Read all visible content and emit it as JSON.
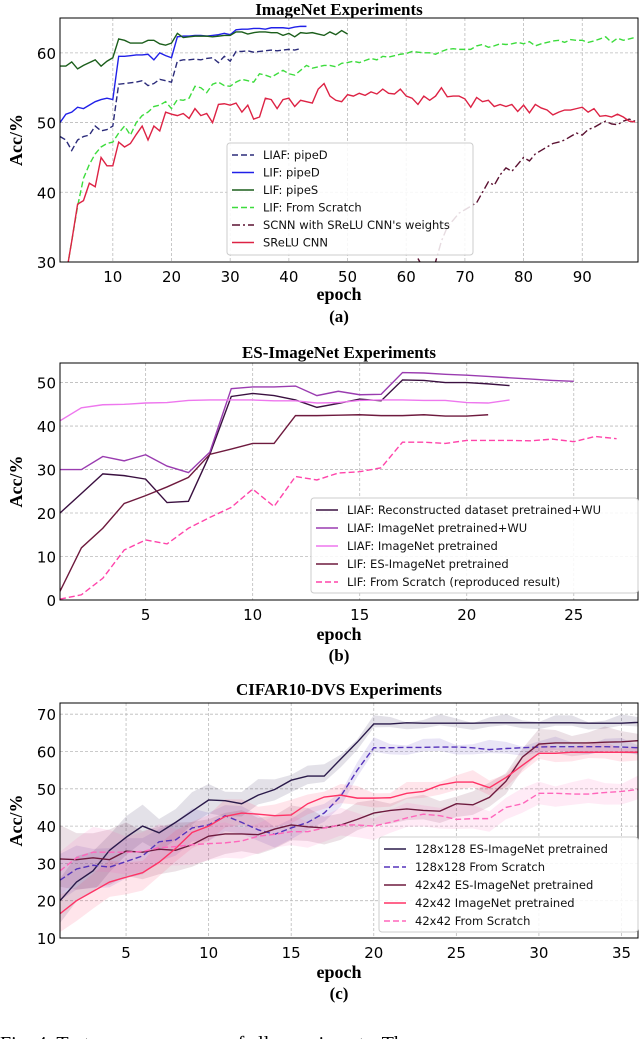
{
  "caption": "Fig. 4.  Test accuracy curves of all experiments. The",
  "chart_data": [
    {
      "type": "line",
      "title": "ImageNet Experiments",
      "xlabel": "epoch",
      "ylabel": "Acc/%",
      "sublabel": "(a)",
      "xlim": [
        1,
        99.5
      ],
      "ylim": [
        30,
        65
      ],
      "xticks": [
        10,
        20,
        30,
        40,
        50,
        60,
        70,
        80,
        90
      ],
      "yticks": [
        30,
        40,
        50,
        60
      ],
      "grid": true,
      "legend": "center",
      "series": [
        {
          "name": "LIAF: pipeD",
          "color": "#2b2b7a",
          "dash": "dashed",
          "x0": 1,
          "values": [
            48,
            47.5,
            46,
            47.5,
            48,
            48.2,
            49.5,
            48.8,
            49,
            49.5,
            55.5,
            55.6,
            55.7,
            55.8,
            56,
            55.3,
            55.6,
            56.2,
            56,
            55.8,
            58.8,
            59,
            59,
            59.1,
            59,
            59.2,
            59.3,
            58.6,
            59.5,
            58.8,
            60.2,
            60.2,
            60.3,
            60.1,
            60.2,
            60.3,
            60.4,
            60.3,
            60.4,
            60.5,
            60.4,
            60.6
          ]
        },
        {
          "name": "LIF: pipeD",
          "color": "#2020e8",
          "dash": "solid",
          "x0": 1,
          "values": [
            50,
            51.2,
            51.5,
            52.2,
            52,
            52.5,
            53,
            53.3,
            53.5,
            53.3,
            59.5,
            59.5,
            59.6,
            59.7,
            59.7,
            59.8,
            59,
            60,
            59.6,
            59.3,
            62.3,
            62.4,
            62.4,
            62.5,
            62.5,
            62.4,
            62.5,
            62.6,
            62.8,
            62.6,
            63.3,
            63.4,
            63.4,
            63.5,
            63.5,
            63.4,
            63.6,
            63.6,
            63.6,
            63.5,
            63.7,
            63.8,
            63.8
          ]
        },
        {
          "name": "LIF: pipeS",
          "color": "#1b5e1b",
          "dash": "solid",
          "x0": 1,
          "values": [
            58.1,
            58.1,
            58.7,
            57.7,
            58.2,
            58.6,
            59,
            58.1,
            58.8,
            59.3,
            62,
            61.8,
            61.4,
            61.4,
            61.4,
            61.8,
            61.8,
            61.3,
            61.1,
            61.4,
            62.8,
            62.2,
            62.3,
            62.4,
            62.4,
            62.4,
            62.3,
            62.4,
            62.5,
            62.5,
            63,
            63,
            62.7,
            62.9,
            63,
            63,
            62.9,
            62.9,
            62.5,
            62.8,
            62.3,
            62.9,
            62.8,
            62.9,
            62.7,
            62.5,
            63,
            62.6,
            63.2,
            62.7
          ]
        },
        {
          "name": "LIF: From Scratch",
          "color": "#3ddc3d",
          "dash": "dashed",
          "x0": 2,
          "values": [
            28,
            33,
            38,
            42,
            44,
            45.5,
            46.5,
            47,
            47.2,
            48.5,
            49.5,
            48.2,
            50,
            51,
            51.5,
            52.3,
            52.5,
            53,
            52,
            53.3,
            53.2,
            53.5,
            55.2,
            55,
            54.3,
            55.5,
            55.8,
            55.3,
            55.2,
            55.8,
            56.2,
            56,
            55.8,
            57,
            56.8,
            56.5,
            57,
            57.5,
            57,
            56.8,
            57.5,
            58.2,
            57.8,
            58,
            58.2,
            58.2,
            58,
            58.5,
            58.6,
            58.8,
            58.6,
            58.9,
            59.2,
            59,
            59.5,
            59.4,
            59.6,
            59.8,
            59.9,
            60.2,
            60.1,
            60,
            60,
            59.8,
            60.2,
            60.5,
            60.6,
            60.5,
            60.5,
            60.5,
            61,
            61.2,
            60.8,
            61,
            61.3,
            61.2,
            61.3,
            61.5,
            61.3,
            61.6,
            61,
            61.3,
            61.5,
            61.7,
            61.8,
            61.5,
            61.9,
            61.8,
            61.8,
            61.5,
            61.7,
            62,
            62.3,
            61.5,
            62.1,
            61.8,
            62,
            62.2
          ]
        },
        {
          "name": "SCNN with SReLU CNN's weights",
          "color": "#5a1030",
          "dash": "dashdot",
          "x0": 62,
          "values": [
            30.5,
            29,
            28,
            30,
            33,
            35,
            36,
            37,
            37.5,
            38,
            38.5,
            40,
            41.5,
            41,
            42.5,
            43.5,
            43,
            44,
            45,
            44.5,
            45.5,
            46,
            46.5,
            47,
            47.2,
            47.5,
            48,
            48.5,
            48.2,
            49,
            49.3,
            49.8,
            50.2,
            49.8,
            49.7,
            50.2,
            50.5,
            50.2
          ]
        },
        {
          "name": "SReLU CNN",
          "color": "#dd2244",
          "dash": "solid",
          "x0": 2,
          "values": [
            28,
            33,
            38.3,
            38.8,
            41.3,
            40.8,
            45,
            43.8,
            43.8,
            47.2,
            46.5,
            47,
            48.3,
            49.5,
            47.5,
            49.5,
            48.8,
            51.5,
            51.2,
            51,
            51.3,
            50.6,
            52,
            51,
            51.3,
            50,
            52.6,
            52.7,
            52.5,
            52.8,
            51.5,
            52.5,
            50.5,
            50.8,
            53.5,
            53.3,
            52,
            53.3,
            53.5,
            52.3,
            53.2,
            53,
            52.8,
            54.8,
            55.6,
            53.8,
            53.2,
            53,
            54,
            53.8,
            54.2,
            53.9,
            54.4,
            54.1,
            54.8,
            54.2,
            54.1,
            54.8,
            53.8,
            53.5,
            52.6,
            53.8,
            53.2,
            53.8,
            55,
            53.7,
            53.8,
            53.8,
            53.4,
            52.2,
            53.6,
            53,
            53.2,
            52.3,
            52.6,
            52.3,
            52.6,
            51.6,
            52.5,
            51.4,
            52.6,
            52.1,
            51.8,
            51.1,
            51.5,
            51.8,
            51.8,
            52,
            52.2,
            51.5,
            52,
            50.9,
            51,
            50.8,
            51.2,
            50.8,
            50.2,
            50.1
          ]
        }
      ]
    },
    {
      "type": "line",
      "title": "ES-ImageNet Experiments",
      "xlabel": "epoch",
      "ylabel": "Acc/%",
      "sublabel": "(b)",
      "xlim": [
        1,
        28
      ],
      "ylim": [
        0,
        54.5
      ],
      "xticks": [
        5,
        10,
        15,
        20,
        25
      ],
      "yticks": [
        0,
        10,
        20,
        30,
        40,
        50
      ],
      "grid": true,
      "legend": "lower-right",
      "series": [
        {
          "name": "LIAF: Reconstructed dataset pretrained+WU",
          "color": "#3a1040",
          "dash": "solid",
          "x0": 1,
          "values": [
            20,
            24.5,
            29,
            28.6,
            27.8,
            22.4,
            22.7,
            33.5,
            46.8,
            47.5,
            47,
            46,
            44.3,
            45.2,
            46.2,
            45.8,
            50.6,
            50.5,
            50,
            50,
            49.7,
            49.3
          ]
        },
        {
          "name": "LIAF: ImageNet pretrained+WU",
          "color": "#9a3cb0",
          "dash": "solid",
          "x0": 1,
          "values": [
            30,
            30,
            33,
            32,
            33.4,
            30.8,
            29.3,
            34,
            48.6,
            49,
            49,
            49.2,
            47,
            48,
            47.2,
            47.3,
            52.3,
            52.2,
            51.9,
            51.7,
            51.4,
            51.1,
            50.8,
            50.5,
            50.3
          ]
        },
        {
          "name": "LIAF: ImageNet pretrained",
          "color": "#ee77ee",
          "dash": "solid",
          "x0": 1,
          "values": [
            41.2,
            44.2,
            44.9,
            45,
            45.3,
            45.4,
            45.9,
            46,
            46,
            46,
            45.8,
            45.8,
            45.3,
            45.4,
            45.9,
            46,
            46,
            45.9,
            45.9,
            45.4,
            45.3,
            46
          ]
        },
        {
          "name": "LIF: ES-ImageNet pretrained",
          "color": "#6e1a3e",
          "dash": "solid",
          "x0": 1,
          "values": [
            2,
            12,
            16.5,
            22.2,
            24,
            26,
            28.2,
            33.5,
            34.7,
            36,
            36,
            42.4,
            42.4,
            42.5,
            42.6,
            42.4,
            42.4,
            42.6,
            42.3,
            42.3,
            42.6
          ]
        },
        {
          "name": "LIF: From Scratch (reproduced result)",
          "color": "#ff44aa",
          "dash": "dashed",
          "x0": 1,
          "values": [
            0.2,
            1.2,
            5,
            11.5,
            13.8,
            12.9,
            16.5,
            19,
            21.3,
            25.5,
            21.5,
            28.4,
            27.6,
            29.2,
            29.5,
            30.4,
            36.3,
            36.3,
            36,
            36.7,
            36.7,
            36.7,
            36.6,
            37,
            36.4,
            37.6,
            37.1
          ]
        }
      ]
    },
    {
      "type": "line",
      "title": "CIFAR10-DVS Experiments",
      "xlabel": "epoch",
      "ylabel": "Acc/%",
      "sublabel": "(c)",
      "xlim": [
        1,
        36
      ],
      "ylim": [
        10,
        73
      ],
      "xticks": [
        5,
        10,
        15,
        20,
        25,
        30,
        35
      ],
      "yticks": [
        10,
        20,
        30,
        40,
        50,
        60,
        70
      ],
      "grid": true,
      "legend": "lower-right",
      "series": [
        {
          "name": "128x128 ES-ImageNet pretrained",
          "color": "#2a1a4a",
          "dash": "solid",
          "x0": 1,
          "band": [
            6,
            1.2
          ],
          "values": [
            20,
            25,
            28,
            33.5,
            37,
            40,
            38.2,
            41,
            44,
            47,
            46.8,
            46,
            48.3,
            49.8,
            52.3,
            53.4,
            53.4,
            58,
            62.5,
            67.4,
            67.4,
            67.7,
            67.6,
            67.6,
            67.6,
            67.6,
            67.7,
            67.7,
            67.7,
            67.7,
            67.7,
            67.7,
            67.6,
            67.6,
            67.6,
            67.8
          ]
        },
        {
          "name": "128x128 From Scratch",
          "color": "#5533bb",
          "dash": "dashed",
          "x0": 1,
          "band": [
            6,
            1.5
          ],
          "values": [
            25.5,
            28.5,
            29.5,
            29,
            30.5,
            32,
            35.8,
            36.3,
            39.5,
            40.3,
            42.8,
            41,
            39,
            37.8,
            39.5,
            41,
            43.5,
            48,
            55,
            61,
            61,
            61.1,
            61.1,
            61.2,
            61.2,
            61,
            60.5,
            60.8,
            61,
            61.2,
            61.3,
            61.3,
            61.3,
            61.3,
            61.2,
            61
          ]
        },
        {
          "name": "42x42 ES-ImageNet pretrained",
          "color": "#6e1a3e",
          "dash": "solid",
          "x0": 1,
          "band": [
            8,
            3
          ],
          "values": [
            31.2,
            31,
            31.5,
            31,
            33.3,
            33,
            33.8,
            33.5,
            35,
            37.3,
            37.9,
            37.9,
            37.7,
            39.2,
            40.3,
            39.8,
            39.5,
            40.3,
            41.8,
            43.5,
            44.2,
            44.6,
            44.2,
            44,
            46,
            45.7,
            47.7,
            52,
            58.5,
            62,
            62.3,
            62.3,
            62.3,
            62.5,
            62.6,
            62.9
          ]
        },
        {
          "name": "42x42 ImageNet pretrained",
          "color": "#ff3366",
          "dash": "solid",
          "x0": 1,
          "band": [
            5,
            2
          ],
          "values": [
            16.5,
            20,
            22.5,
            25,
            26.3,
            27.5,
            30.3,
            34,
            38.3,
            40,
            42.6,
            43.5,
            43.2,
            42.8,
            43,
            46,
            47.8,
            48.3,
            47.5,
            47.5,
            47.6,
            48.8,
            49.3,
            51,
            51.8,
            51.8,
            50.3,
            53,
            56.3,
            59.5,
            59.5,
            59.8,
            59.8,
            59.8,
            59.8,
            59.8
          ]
        },
        {
          "name": "42x42 From Scratch",
          "color": "#ff66bb",
          "dash": "dashed",
          "x0": 1,
          "band": [
            6,
            3
          ],
          "values": [
            28,
            31.5,
            33,
            33,
            33,
            33.2,
            34.2,
            34.5,
            35,
            35.3,
            35.5,
            36,
            37.3,
            37.8,
            38.5,
            38.5,
            39.5,
            40.3,
            40.3,
            40,
            41,
            42.2,
            43.2,
            42.8,
            41.8,
            42,
            42,
            45,
            46,
            48.8,
            48.8,
            48.6,
            48.6,
            49,
            49.3,
            49.8
          ]
        }
      ]
    }
  ]
}
